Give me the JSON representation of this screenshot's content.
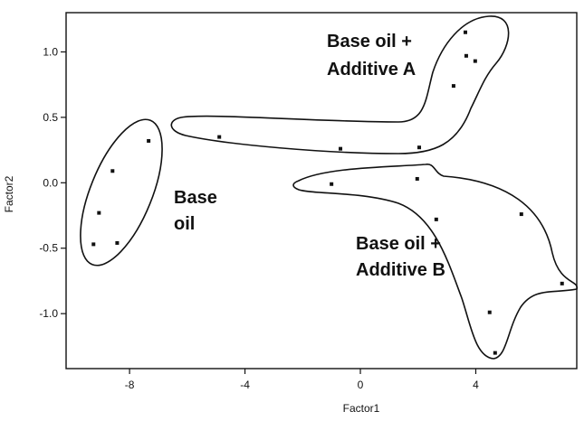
{
  "chart_data": {
    "type": "scatter",
    "x_label": "Factor1",
    "y_label": "Factor2",
    "series": [
      {
        "color": "#111111",
        "x": [
          -7.34,
          -8.59,
          -9.06,
          -9.25,
          -8.43,
          -4.89,
          -0.69,
          2.04,
          3.23,
          3.64,
          3.67,
          3.98,
          -1.0,
          1.97,
          2.63,
          5.58,
          6.99,
          4.48,
          4.67
        ],
        "y": [
          0.32,
          0.09,
          -0.23,
          -0.47,
          -0.46,
          0.35,
          0.26,
          0.27,
          0.74,
          1.15,
          0.97,
          0.93,
          -0.01,
          0.03,
          -0.28,
          -0.24,
          -0.77,
          -0.99,
          -1.3
        ]
      }
    ],
    "annotations": [
      "Base oil +",
      "Additive A",
      "Base",
      "oil",
      "Base oil +",
      "Additive B"
    ],
    "xlim": [
      -10.2,
      7.5
    ],
    "xticks": [
      -8,
      -4,
      0,
      4
    ],
    "ylim": [
      -1.42,
      1.3
    ],
    "yticks": [
      {
        "value": 1.0,
        "label": "1.0"
      },
      {
        "value": 0.5,
        "label": "0.5"
      },
      {
        "value": 0.0,
        "label": "0.0"
      },
      {
        "value": -0.5,
        "label": "-0.5"
      },
      {
        "value": -1.0,
        "label": "-1.0"
      }
    ]
  }
}
